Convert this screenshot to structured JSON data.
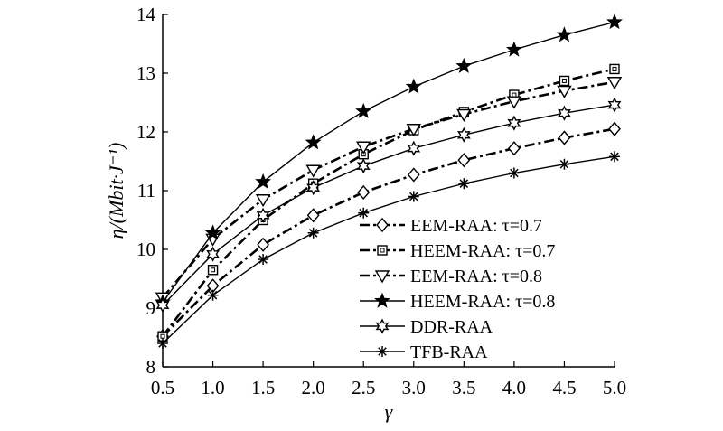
{
  "chart_data": {
    "type": "line",
    "title": "",
    "xlabel": "γ",
    "ylabel": "η/(Mbit·J⁻¹)",
    "x": [
      0.5,
      1.0,
      1.5,
      2.0,
      2.5,
      3.0,
      3.5,
      4.0,
      4.5,
      5.0
    ],
    "x_tick_labels": [
      "0.5",
      "1.0",
      "1.5",
      "2.0",
      "2.5",
      "3.0",
      "3.5",
      "4.0",
      "4.5",
      "5.0"
    ],
    "y_ticks": [
      8,
      9,
      10,
      11,
      12,
      13,
      14
    ],
    "y_tick_labels": [
      "8",
      "9",
      "10",
      "11",
      "12",
      "13",
      "14"
    ],
    "xlim": [
      0.5,
      5.0
    ],
    "ylim": [
      8,
      14
    ],
    "grid": false,
    "legend_position": "bottom-right",
    "series": [
      {
        "name": "EEM-RAA: τ=0.7",
        "marker": "diamond",
        "dash": "dashdot",
        "values": [
          8.52,
          9.38,
          10.08,
          10.58,
          10.97,
          11.27,
          11.52,
          11.72,
          11.9,
          12.05
        ]
      },
      {
        "name": "HEEM-RAA: τ=0.7",
        "marker": "square",
        "dash": "dashdot",
        "values": [
          8.52,
          9.65,
          10.5,
          11.12,
          11.62,
          12.03,
          12.34,
          12.63,
          12.87,
          13.07
        ]
      },
      {
        "name": "EEM-RAA: τ=0.8",
        "marker": "triangle-down",
        "dash": "dashdot",
        "values": [
          9.18,
          10.18,
          10.85,
          11.35,
          11.75,
          12.05,
          12.3,
          12.52,
          12.7,
          12.85
        ]
      },
      {
        "name": "HEEM-RAA: τ=0.8",
        "marker": "star",
        "dash": "solid",
        "values": [
          9.1,
          10.28,
          11.15,
          11.82,
          12.35,
          12.77,
          13.12,
          13.4,
          13.65,
          13.87
        ]
      },
      {
        "name": "DDR-RAA",
        "marker": "star-hexagram",
        "dash": "solid",
        "values": [
          9.05,
          9.92,
          10.58,
          11.05,
          11.42,
          11.72,
          11.95,
          12.15,
          12.32,
          12.46
        ]
      },
      {
        "name": "TFB-RAA",
        "marker": "asterisk",
        "dash": "solid",
        "values": [
          8.4,
          9.22,
          9.83,
          10.28,
          10.62,
          10.9,
          11.12,
          11.3,
          11.45,
          11.58
        ]
      }
    ]
  }
}
